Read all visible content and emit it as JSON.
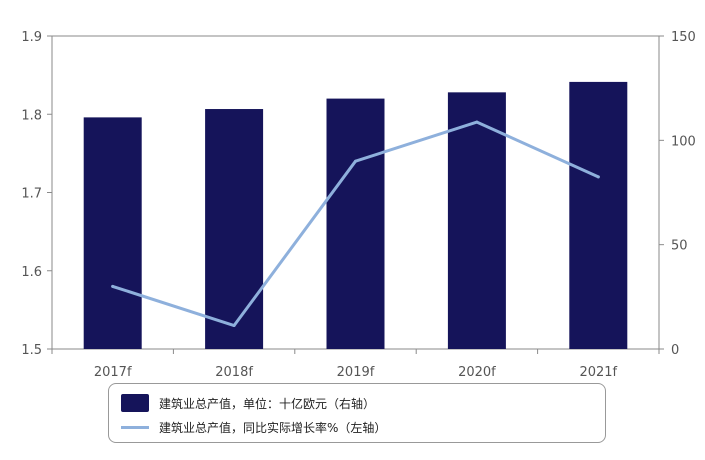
{
  "chart_data": {
    "type": "bar",
    "categories": [
      "2017f",
      "2018f",
      "2019f",
      "2020f",
      "2021f"
    ],
    "series": [
      {
        "name": "建筑业总产值，单位：十亿欧元（右轴）",
        "type": "bar",
        "axis": "right",
        "values": [
          111,
          115,
          120,
          123,
          128
        ],
        "color": "#15145a"
      },
      {
        "name": "建筑业总产值，同比实际增长率%（左轴）",
        "type": "line",
        "axis": "left",
        "values": [
          1.58,
          1.53,
          1.74,
          1.79,
          1.72
        ],
        "color": "#8eb0dc"
      }
    ],
    "left_axis": {
      "ylim": [
        1.5,
        1.9
      ],
      "ticks": [
        "1.9",
        "1.8",
        "1.7",
        "1.6",
        "1.5"
      ]
    },
    "right_axis": {
      "ylim": [
        0,
        150
      ],
      "ticks": [
        "150",
        "100",
        "50",
        "0"
      ]
    },
    "grid": false,
    "legend_position": "bottom",
    "title": "",
    "xlabel": "",
    "ylabel": ""
  }
}
